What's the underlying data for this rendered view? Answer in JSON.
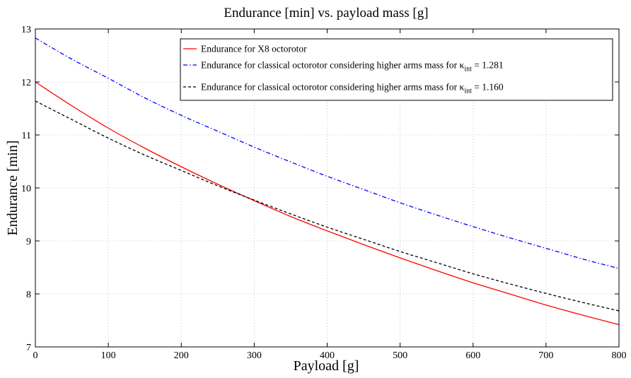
{
  "chart_data": {
    "type": "line",
    "title": "Endurance [min] vs. payload mass [g]",
    "xlabel": "Payload [g]",
    "ylabel": "Endurance [min]",
    "xlim": [
      0,
      800
    ],
    "ylim": [
      7,
      13
    ],
    "xticks": [
      0,
      100,
      200,
      300,
      400,
      500,
      600,
      700,
      800
    ],
    "yticks": [
      7,
      8,
      9,
      10,
      11,
      12,
      13
    ],
    "grid": true,
    "legend_position": "top-right",
    "series": [
      {
        "name": "Endurance for X8 octorotor",
        "name_sub": "",
        "name_suffix": "",
        "color": "#ff0000",
        "dash": "solid",
        "x": [
          0,
          50,
          100,
          150,
          200,
          250,
          300,
          350,
          400,
          450,
          500,
          550,
          600,
          650,
          700,
          750,
          800
        ],
        "y": [
          12.0,
          11.55,
          11.13,
          10.75,
          10.4,
          10.07,
          9.76,
          9.46,
          9.19,
          8.93,
          8.68,
          8.44,
          8.21,
          8.0,
          7.79,
          7.6,
          7.42
        ]
      },
      {
        "name": "Endurance for classical octorotor considering higher arms mass for κ",
        "name_sub": "int",
        "name_suffix": " = 1.281",
        "color": "#0000ff",
        "dash": "dashdot",
        "x": [
          0,
          50,
          100,
          150,
          200,
          250,
          300,
          350,
          400,
          450,
          500,
          550,
          600,
          650,
          700,
          750,
          800
        ],
        "y": [
          12.83,
          12.43,
          12.07,
          11.7,
          11.37,
          11.07,
          10.77,
          10.49,
          10.22,
          9.97,
          9.72,
          9.49,
          9.27,
          9.06,
          8.86,
          8.66,
          8.48
        ]
      },
      {
        "name": "Endurance for classical octorotor considering higher arms mass for κ",
        "name_sub": "int",
        "name_suffix": " = 1.160",
        "color": "#000000",
        "dash": "dashed",
        "x": [
          0,
          50,
          100,
          150,
          200,
          250,
          300,
          350,
          400,
          450,
          500,
          550,
          600,
          650,
          700,
          750,
          800
        ],
        "y": [
          11.64,
          11.29,
          10.94,
          10.62,
          10.33,
          10.04,
          9.77,
          9.51,
          9.26,
          9.03,
          8.8,
          8.59,
          8.38,
          8.19,
          8.01,
          7.84,
          7.68
        ]
      }
    ]
  }
}
